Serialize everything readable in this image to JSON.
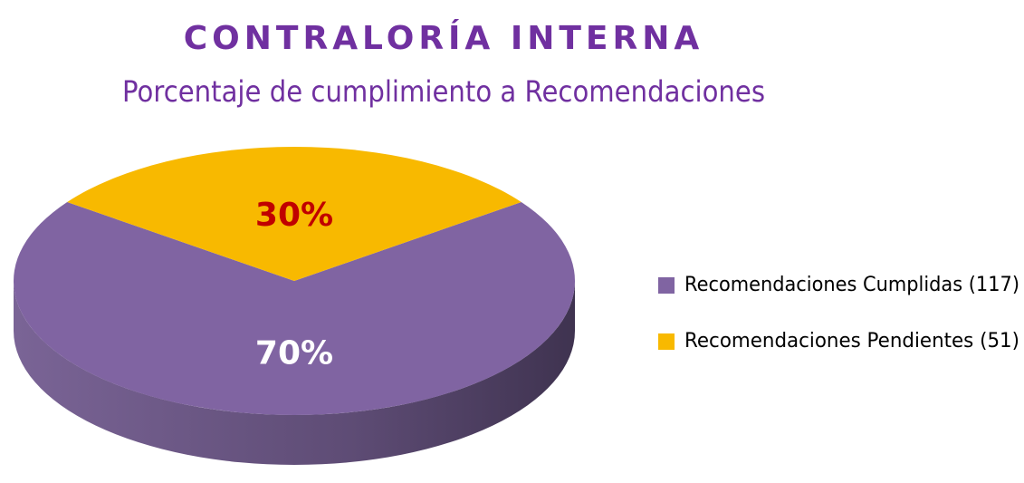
{
  "chart_data": {
    "type": "pie",
    "title": "CONTRALORÍA INTERNA",
    "subtitle": "Porcentaje de cumplimiento a Recomendaciones",
    "categories": [
      "Recomendaciones Cumplidas (117)",
      "Recomendaciones Pendientes (51)"
    ],
    "values": [
      70,
      30
    ],
    "value_labels": [
      "70%",
      "30%"
    ],
    "colors": [
      "#8064a2",
      "#f8b900"
    ],
    "legend": "right"
  }
}
